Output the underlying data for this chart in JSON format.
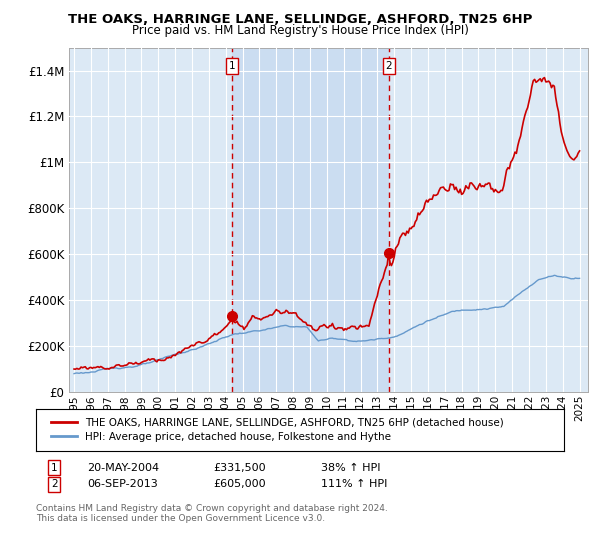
{
  "title": "THE OAKS, HARRINGE LANE, SELLINDGE, ASHFORD, TN25 6HP",
  "subtitle": "Price paid vs. HM Land Registry's House Price Index (HPI)",
  "red_label": "THE OAKS, HARRINGE LANE, SELLINDGE, ASHFORD, TN25 6HP (detached house)",
  "blue_label": "HPI: Average price, detached house, Folkestone and Hythe",
  "footnote": "Contains HM Land Registry data © Crown copyright and database right 2024.\nThis data is licensed under the Open Government Licence v3.0.",
  "marker1": {
    "label": "1",
    "date": "20-MAY-2004",
    "price": "£331,500",
    "pct": "38% ↑ HPI",
    "x_year": 2004.38
  },
  "marker2": {
    "label": "2",
    "date": "06-SEP-2013",
    "price": "£605,000",
    "pct": "111% ↑ HPI",
    "x_year": 2013.68
  },
  "ylim": [
    0,
    1500000
  ],
  "xlim_start": 1994.7,
  "xlim_end": 2025.5,
  "plot_bg": "#dce9f5",
  "shade_color": "#c5d8f0",
  "grid_color": "#ffffff",
  "red_color": "#cc0000",
  "blue_color": "#6699cc"
}
